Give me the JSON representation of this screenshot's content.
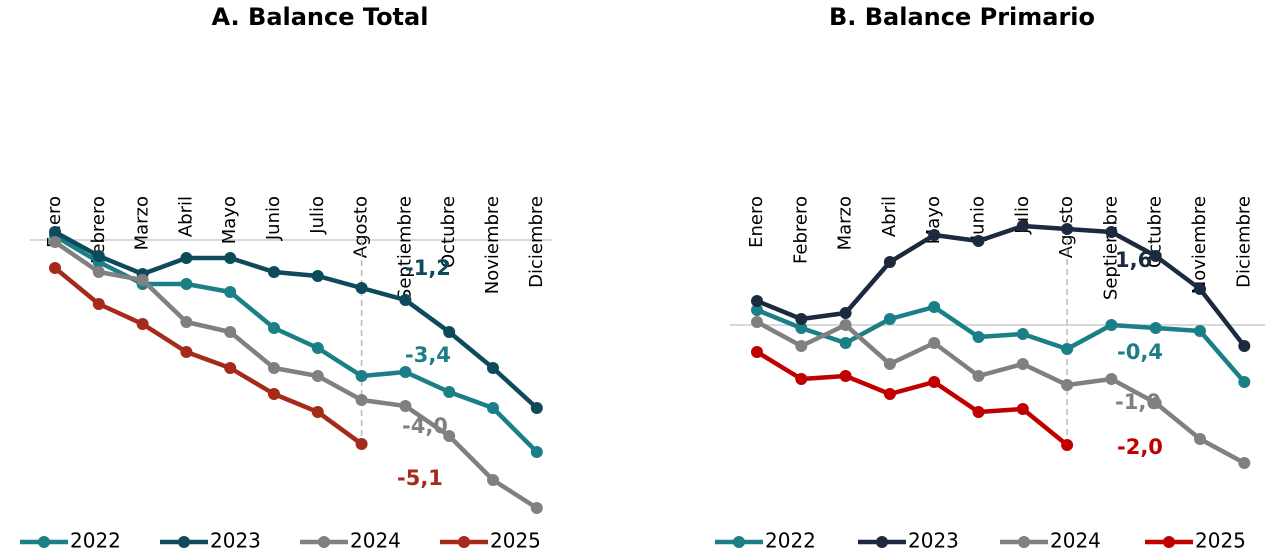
{
  "chart_data": [
    {
      "type": "line",
      "title": "A.  Balance Total",
      "categories": [
        "Enero",
        "Febrero",
        "Marzo",
        "Abril",
        "Mayo",
        "Junio",
        "Julio",
        "Agosto",
        "Septiembre",
        "Octubre",
        "Noviembre",
        "Diciembre"
      ],
      "series": [
        {
          "name": "2022",
          "color": "#1a7f86",
          "values": [
            0.1,
            -0.55,
            -1.1,
            -1.1,
            -1.3,
            -2.2,
            -2.7,
            -3.4,
            -3.3,
            -3.8,
            -4.2,
            -5.3
          ],
          "value_labels": [
            null,
            null,
            null,
            null,
            null,
            null,
            null,
            "-3,4",
            null,
            null,
            null,
            null
          ]
        },
        {
          "name": "2023",
          "color": "#0d4a5c",
          "values": [
            0.2,
            -0.4,
            -0.85,
            -0.45,
            -0.45,
            -0.8,
            -0.9,
            -1.2,
            -1.5,
            -2.3,
            -3.2,
            -4.2
          ],
          "value_labels": [
            null,
            null,
            null,
            null,
            null,
            null,
            null,
            "-1,2",
            null,
            null,
            null,
            null
          ]
        },
        {
          "name": "2024",
          "color": "#808080",
          "values": [
            -0.05,
            -0.8,
            -1.0,
            -2.05,
            -2.3,
            -3.2,
            -3.4,
            -4.0,
            -4.15,
            -4.9,
            -6.0,
            -6.7
          ],
          "value_labels": [
            null,
            null,
            null,
            null,
            null,
            null,
            null,
            "-4,0",
            null,
            null,
            null,
            null
          ]
        },
        {
          "name": "2025",
          "color": "#a52a1a",
          "values": [
            -0.7,
            -1.6,
            -2.1,
            -2.8,
            -3.2,
            -3.85,
            -4.3,
            -5.1,
            null,
            null,
            null,
            null
          ],
          "value_labels": [
            null,
            null,
            null,
            null,
            null,
            null,
            null,
            "-5,1",
            null,
            null,
            null,
            null
          ]
        }
      ]
    },
    {
      "type": "line",
      "title": "B.  Balance Primario",
      "categories": [
        "Enero",
        "Febrero",
        "Marzo",
        "Abril",
        "Mayo",
        "Junio",
        "Julio",
        "Agosto",
        "Septiembre",
        "Octubre",
        "Noviembre",
        "Diciembre"
      ],
      "series": [
        {
          "name": "2022",
          "color": "#1a7f86",
          "values": [
            0.25,
            -0.05,
            -0.3,
            0.1,
            0.3,
            -0.2,
            -0.15,
            -0.4,
            0.0,
            -0.05,
            -0.1,
            -0.95
          ],
          "value_labels": [
            null,
            null,
            null,
            null,
            null,
            null,
            null,
            "-0,4",
            null,
            null,
            null,
            null
          ]
        },
        {
          "name": "2023",
          "color": "#1c2a3e",
          "values": [
            0.4,
            0.1,
            0.2,
            1.05,
            1.5,
            1.4,
            1.65,
            1.6,
            1.55,
            1.15,
            0.6,
            -0.35
          ],
          "value_labels": [
            null,
            null,
            null,
            null,
            null,
            null,
            null,
            "1,6",
            null,
            null,
            null,
            null
          ]
        },
        {
          "name": "2024",
          "color": "#808080",
          "values": [
            0.05,
            -0.35,
            0.0,
            -0.65,
            -0.3,
            -0.85,
            -0.65,
            -1.0,
            -0.9,
            -1.3,
            -1.9,
            -2.3
          ],
          "value_labels": [
            null,
            null,
            null,
            null,
            null,
            null,
            null,
            "-1,0",
            null,
            null,
            null,
            null
          ]
        },
        {
          "name": "2025",
          "color": "#c00000",
          "values": [
            -0.45,
            -0.9,
            -0.85,
            -1.15,
            -0.95,
            -1.45,
            -1.4,
            -2.0,
            null,
            null,
            null,
            null
          ],
          "value_labels": [
            null,
            null,
            null,
            null,
            null,
            null,
            null,
            "-2,0",
            null,
            null,
            null,
            null
          ]
        }
      ]
    }
  ]
}
